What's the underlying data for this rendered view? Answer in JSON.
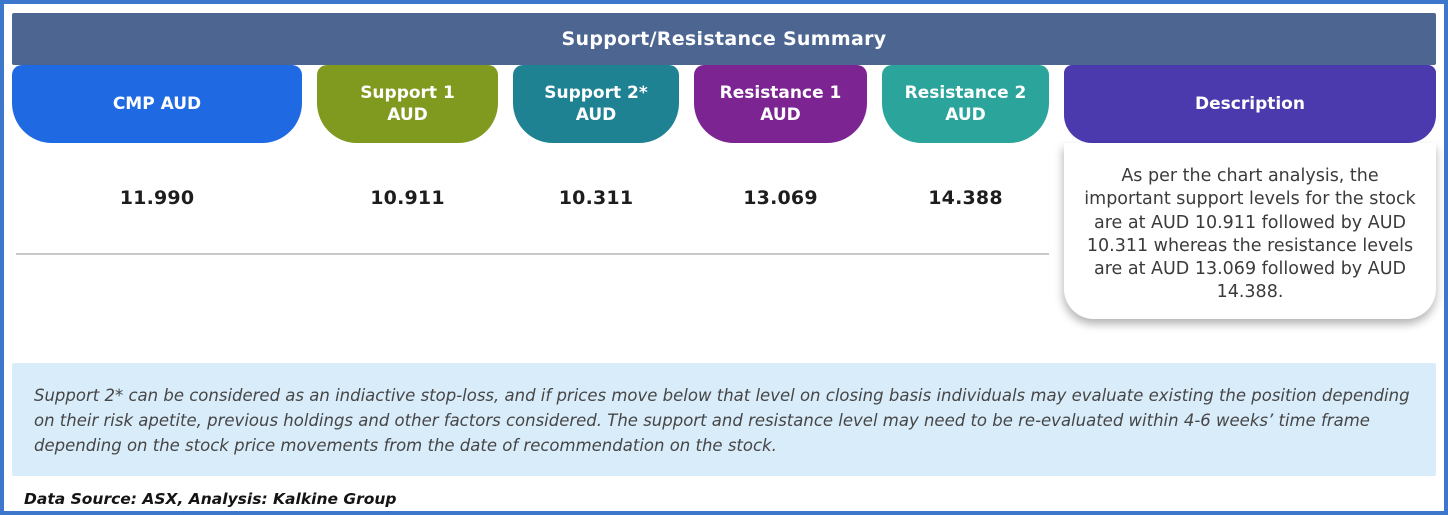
{
  "title": "Support/Resistance Summary",
  "table": {
    "columns": [
      {
        "line1": "CMP AUD",
        "line2": "",
        "value": "11.990",
        "color": "#1f6ae3"
      },
      {
        "line1": "Support 1",
        "line2": "AUD",
        "value": "10.911",
        "color": "#80991f"
      },
      {
        "line1": "Support 2*",
        "line2": "AUD",
        "value": "10.311",
        "color": "#1f8292"
      },
      {
        "line1": "Resistance 1",
        "line2": "AUD",
        "value": "13.069",
        "color": "#7b2492"
      },
      {
        "line1": "Resistance 2",
        "line2": "AUD",
        "value": "14.388",
        "color": "#2ba49b"
      }
    ],
    "description": {
      "header": "Description",
      "header_color": "#4a3aae",
      "text": "As per the chart analysis, the important support levels for the stock are at AUD 10.911 followed by AUD 10.311 whereas the resistance levels are at AUD 13.069 followed by AUD 14.388."
    }
  },
  "note": "Support 2* can be considered as an indiactive stop-loss, and if prices move below that level on closing basis individuals may evaluate existing the position depending on their risk apetite, previous holdings and other factors considered. The support and resistance level may need to be re-evaluated within 4-6 weeks’ time frame depending on the stock price movements from  the date of recommendation on the stock.",
  "footer": "Data Source: ASX, Analysis: Kalkine Group",
  "colors": {
    "frame_border": "#3d77cc",
    "header_bar": "#4d6591",
    "note_bg": "#d9ecfa",
    "separator": "#c9c9c9"
  }
}
